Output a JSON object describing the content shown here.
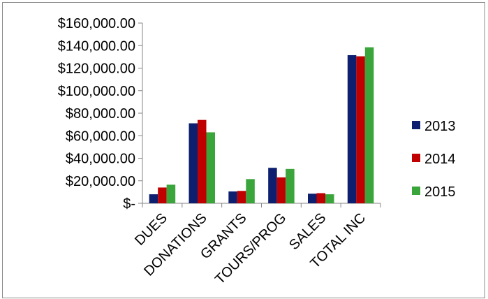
{
  "chart_data": {
    "type": "bar",
    "categories": [
      "DUES",
      "DONATIONS",
      "GRANTS",
      "TOURS/PROG",
      "SALES",
      "TOTAL INC"
    ],
    "series": [
      {
        "name": "2013",
        "color": "#0d1f6e",
        "values": [
          8000,
          71000,
          10500,
          31500,
          8500,
          131500
        ]
      },
      {
        "name": "2014",
        "color": "#c00000",
        "values": [
          14000,
          74000,
          11000,
          23000,
          9000,
          130500
        ]
      },
      {
        "name": "2015",
        "color": "#3aa53a",
        "values": [
          16500,
          63000,
          21500,
          30500,
          8000,
          138500
        ]
      }
    ],
    "y_ticks": [
      0,
      20000,
      40000,
      60000,
      80000,
      100000,
      120000,
      140000,
      160000
    ],
    "y_tick_labels": [
      "$-",
      "$20,000.00",
      "$40,000.00",
      "$60,000.00",
      "$80,000.00",
      "$100,000.00",
      "$120,000.00",
      "$140,000.00",
      "$160,000.00"
    ],
    "ylim": [
      0,
      160000
    ],
    "grid": false,
    "legend_position": "right",
    "title": "",
    "xlabel": "",
    "ylabel": ""
  }
}
